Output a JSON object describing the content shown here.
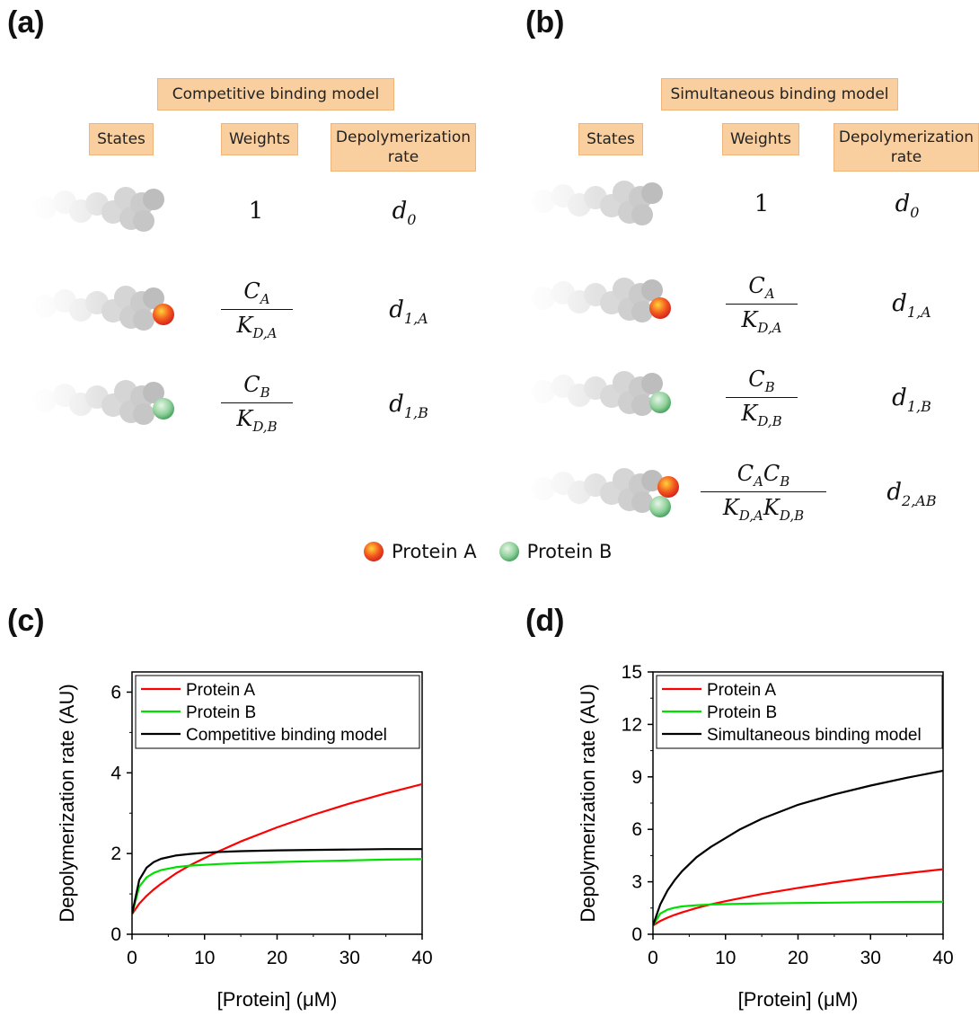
{
  "panels": {
    "a": {
      "label": "(a)",
      "model_title": "Competitive binding model",
      "headers": {
        "states": "States",
        "weights": "Weights",
        "rate": "Depolymerization rate"
      },
      "rows": [
        {
          "weight": "1",
          "rate_main": "d",
          "rate_sub": "0"
        },
        {
          "weight_num_main": "C",
          "weight_num_sub": "A",
          "weight_den_main": "K",
          "weight_den_sub": "D,A",
          "rate_main": "d",
          "rate_sub": "1,A"
        },
        {
          "weight_num_main": "C",
          "weight_num_sub": "B",
          "weight_den_main": "K",
          "weight_den_sub": "D,B",
          "rate_main": "d",
          "rate_sub": "1,B"
        }
      ]
    },
    "b": {
      "label": "(b)",
      "model_title": "Simultaneous binding model",
      "headers": {
        "states": "States",
        "weights": "Weights",
        "rate": "Depolymerization rate"
      },
      "rows": [
        {
          "weight": "1",
          "rate_main": "d",
          "rate_sub": "0"
        },
        {
          "weight_num_main": "C",
          "weight_num_sub": "A",
          "weight_den_main": "K",
          "weight_den_sub": "D,A",
          "rate_main": "d",
          "rate_sub": "1,A"
        },
        {
          "weight_num_main": "C",
          "weight_num_sub": "B",
          "weight_den_main": "K",
          "weight_den_sub": "D,B",
          "rate_main": "d",
          "rate_sub": "1,B"
        },
        {
          "rate_main": "d",
          "rate_sub": "2,AB"
        }
      ]
    },
    "c": {
      "label": "(c)"
    },
    "d": {
      "label": "(d)"
    }
  },
  "legend": {
    "protein_a": "Protein A",
    "protein_b": "Protein B"
  },
  "colors": {
    "tag_fill": "#f9cf9f",
    "protein_a": "#e8281e",
    "protein_b": "#5cb874",
    "line_a": "#ff0000",
    "line_b": "#00e000",
    "line_model": "#000000"
  },
  "chart_data": [
    {
      "type": "line",
      "xlabel": "[Protein] (μM)",
      "ylabel": "Depolymerization rate (AU)",
      "xlim": [
        0,
        40
      ],
      "ylim": [
        0,
        6.5
      ],
      "xticks": [
        "0",
        "10",
        "20",
        "30",
        "40"
      ],
      "yticks": [
        "0",
        "2",
        "4",
        "6"
      ],
      "legend_position": "top-left",
      "x": [
        0,
        1,
        2,
        3,
        4,
        6,
        8,
        10,
        12,
        15,
        20,
        25,
        30,
        35,
        40
      ],
      "series": [
        {
          "name": "Protein A",
          "values": [
            0.5,
            0.76,
            0.95,
            1.11,
            1.25,
            1.5,
            1.71,
            1.89,
            2.06,
            2.3,
            2.65,
            2.96,
            3.24,
            3.49,
            3.72
          ]
        },
        {
          "name": "Protein B",
          "values": [
            0.5,
            1.18,
            1.41,
            1.52,
            1.59,
            1.66,
            1.7,
            1.72,
            1.74,
            1.76,
            1.79,
            1.81,
            1.83,
            1.85,
            1.86
          ]
        },
        {
          "name": "Competitive binding model",
          "values": [
            0.5,
            1.35,
            1.65,
            1.79,
            1.87,
            1.95,
            1.99,
            2.02,
            2.04,
            2.06,
            2.08,
            2.09,
            2.1,
            2.11,
            2.11
          ]
        }
      ]
    },
    {
      "type": "line",
      "xlabel": "[Protein] (μM)",
      "ylabel": "Depolymerization rate (AU)",
      "xlim": [
        0,
        40
      ],
      "ylim": [
        0,
        15
      ],
      "xticks": [
        "0",
        "10",
        "20",
        "30",
        "40"
      ],
      "yticks": [
        "0",
        "3",
        "6",
        "9",
        "12",
        "15"
      ],
      "legend_position": "top-left",
      "x": [
        0,
        1,
        2,
        3,
        4,
        6,
        8,
        10,
        12,
        15,
        20,
        25,
        30,
        35,
        40
      ],
      "series": [
        {
          "name": "Protein A",
          "values": [
            0.5,
            0.76,
            0.95,
            1.11,
            1.25,
            1.5,
            1.71,
            1.89,
            2.06,
            2.3,
            2.65,
            2.96,
            3.24,
            3.49,
            3.72
          ]
        },
        {
          "name": "Protein B",
          "values": [
            0.5,
            1.18,
            1.41,
            1.52,
            1.59,
            1.66,
            1.7,
            1.72,
            1.74,
            1.76,
            1.79,
            1.81,
            1.83,
            1.85,
            1.86
          ]
        },
        {
          "name": "Simultaneous binding model",
          "values": [
            0.5,
            1.7,
            2.5,
            3.1,
            3.6,
            4.4,
            5.0,
            5.5,
            6.0,
            6.6,
            7.4,
            8.0,
            8.5,
            8.95,
            9.35
          ]
        }
      ]
    }
  ]
}
